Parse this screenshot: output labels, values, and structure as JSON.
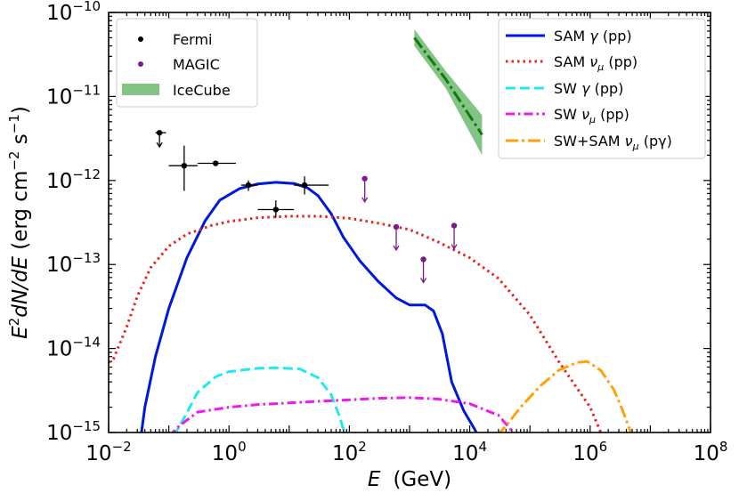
{
  "chart_data": {
    "type": "line",
    "xscale": "log",
    "yscale": "log",
    "xlim": [
      0.01,
      100000000
    ],
    "ylim": [
      1e-15,
      1e-10
    ],
    "xlabel": {
      "var": "E",
      "unit": "(GeV)"
    },
    "ylabel": {
      "lead": "E",
      "sup1": "2",
      "mid": "dN/dE",
      "unit_a": " (erg cm",
      "sup2": "−2",
      "unit_b": " s",
      "sup3": "−1",
      "unit_c": ")"
    },
    "xticks": [
      {
        "value": 0.01,
        "base": "10",
        "exp": "−2"
      },
      {
        "value": 1,
        "base": "10",
        "exp": "0"
      },
      {
        "value": 100,
        "base": "10",
        "exp": "2"
      },
      {
        "value": 10000,
        "base": "10",
        "exp": "4"
      },
      {
        "value": 1000000,
        "base": "10",
        "exp": "6"
      },
      {
        "value": 100000000,
        "base": "10",
        "exp": "8"
      }
    ],
    "yticks": [
      {
        "value": 1e-15,
        "base": "10",
        "exp": "−15"
      },
      {
        "value": 1e-14,
        "base": "10",
        "exp": "−14"
      },
      {
        "value": 1e-13,
        "base": "10",
        "exp": "−13"
      },
      {
        "value": 1e-12,
        "base": "10",
        "exp": "−12"
      },
      {
        "value": 1e-11,
        "base": "10",
        "exp": "−11"
      },
      {
        "value": 1e-10,
        "base": "10",
        "exp": "−10"
      }
    ],
    "series": [
      {
        "name": "SAM γ (pp)",
        "color": "#0018d9",
        "style": "solid",
        "points": [
          [
            0.032,
            6e-16
          ],
          [
            0.04,
            2e-15
          ],
          [
            0.06,
            8e-15
          ],
          [
            0.1,
            3e-14
          ],
          [
            0.2,
            1.2e-13
          ],
          [
            0.4,
            3.3e-13
          ],
          [
            0.7,
            5.8e-13
          ],
          [
            1.5,
            8e-13
          ],
          [
            3,
            9.1e-13
          ],
          [
            6,
            9.5e-13
          ],
          [
            12,
            9.2e-13
          ],
          [
            20,
            8.2e-13
          ],
          [
            30,
            6.6e-13
          ],
          [
            50,
            4e-13
          ],
          [
            80,
            2.1e-13
          ],
          [
            150,
            1.1e-13
          ],
          [
            300,
            6.3e-14
          ],
          [
            600,
            4e-14
          ],
          [
            1000,
            3.3e-14
          ],
          [
            1800,
            3.3e-14
          ],
          [
            2500,
            2.8e-14
          ],
          [
            3500,
            1.5e-14
          ],
          [
            5000,
            4e-15
          ],
          [
            8000,
            1.8e-15
          ],
          [
            12000,
            1.1e-15
          ],
          [
            18000,
            6e-16
          ]
        ]
      },
      {
        "name": "SAM ν_μ (pp)",
        "color": "#e8231f",
        "style": "dotted",
        "points": [
          [
            0.01,
            6.8e-15
          ],
          [
            0.012,
            7.5e-15
          ],
          [
            0.02,
            1.8e-14
          ],
          [
            0.03,
            4.2e-14
          ],
          [
            0.05,
            9.2e-14
          ],
          [
            0.1,
            1.65e-13
          ],
          [
            0.2,
            2.3e-13
          ],
          [
            0.5,
            2.9e-13
          ],
          [
            1,
            3.25e-13
          ],
          [
            3,
            3.6e-13
          ],
          [
            10,
            3.75e-13
          ],
          [
            30,
            3.75e-13
          ],
          [
            100,
            3.55e-13
          ],
          [
            300,
            3.1e-13
          ],
          [
            1000,
            2.6e-13
          ],
          [
            3000,
            1.85e-13
          ],
          [
            10000,
            1.2e-13
          ],
          [
            30000,
            6.8e-14
          ],
          [
            100000,
            2.5e-14
          ],
          [
            300000,
            7e-15
          ],
          [
            1000000,
            2e-15
          ],
          [
            1600000,
            9e-16
          ]
        ]
      },
      {
        "name": "SW γ (pp)",
        "color": "#22e8ef",
        "style": "dashed",
        "points": [
          [
            0.12,
            9e-16
          ],
          [
            0.18,
            1.5e-15
          ],
          [
            0.3,
            3e-15
          ],
          [
            0.6,
            4.6e-15
          ],
          [
            1,
            5.3e-15
          ],
          [
            3,
            5.8e-15
          ],
          [
            6,
            5.9e-15
          ],
          [
            15,
            5.7e-15
          ],
          [
            30,
            4.5e-15
          ],
          [
            50,
            2.8e-15
          ],
          [
            70,
            1.5e-15
          ],
          [
            90,
            8e-16
          ]
        ]
      },
      {
        "name": "SW ν_μ (pp)",
        "color": "#ee1aec",
        "style": "dashdot",
        "points": [
          [
            0.1,
            9e-16
          ],
          [
            0.15,
            1.2e-15
          ],
          [
            0.3,
            1.75e-15
          ],
          [
            1,
            2e-15
          ],
          [
            3,
            2.15e-15
          ],
          [
            10,
            2.25e-15
          ],
          [
            30,
            2.35e-15
          ],
          [
            100,
            2.45e-15
          ],
          [
            300,
            2.55e-15
          ],
          [
            1000,
            2.6e-15
          ],
          [
            3000,
            2.5e-15
          ],
          [
            10000,
            2.2e-15
          ],
          [
            30000,
            1.6e-15
          ],
          [
            60000,
            9e-16
          ]
        ]
      },
      {
        "name": "SW+SAM ν_μ (pγ)",
        "color": "#ffa10a",
        "style": "longdashdot",
        "points": [
          [
            28000,
            9e-16
          ],
          [
            40000,
            1.2e-15
          ],
          [
            70000,
            2e-15
          ],
          [
            150000,
            3.6e-15
          ],
          [
            300000,
            5.5e-15
          ],
          [
            600000,
            6.8e-15
          ],
          [
            900000,
            7e-15
          ],
          [
            1500000,
            5.5e-15
          ],
          [
            2500000,
            3.2e-15
          ],
          [
            3500000,
            1.8e-15
          ],
          [
            5000000,
            9e-16
          ]
        ]
      }
    ],
    "icecube": {
      "name": "IceCube",
      "color": "#5ab05c",
      "line_color": "#107a10",
      "band": [
        [
          1200,
          6.3e-11,
          4e-11
        ],
        [
          4000,
          2e-11,
          1.25e-11
        ],
        [
          16000,
          6e-12,
          2e-12
        ]
      ],
      "line": [
        [
          1200,
          5e-11
        ],
        [
          4000,
          1.6e-11
        ],
        [
          16000,
          3.5e-12
        ]
      ]
    },
    "fermi": {
      "name": "Fermi",
      "color": "#000000",
      "points": [
        {
          "x": 0.07,
          "y": 3.7e-12,
          "xlo": 0.06,
          "xhi": 0.09,
          "upper_limit": true
        },
        {
          "x": 0.18,
          "y": 1.5e-12,
          "xlo": 0.1,
          "xhi": 0.3,
          "ylo": 7.5e-13,
          "yhi": 2.6e-12
        },
        {
          "x": 0.6,
          "y": 1.6e-12,
          "xlo": 0.3,
          "xhi": 1.3
        },
        {
          "x": 2.1,
          "y": 8.8e-13,
          "xlo": 1.6,
          "xhi": 3.0,
          "ylo": 7.5e-13,
          "yhi": 1e-12
        },
        {
          "x": 6.0,
          "y": 4.5e-13,
          "xlo": 3.0,
          "xhi": 12.0,
          "ylo": 3.6e-13,
          "yhi": 5.8e-13
        },
        {
          "x": 18.0,
          "y": 8.8e-13,
          "xlo": 12.0,
          "xhi": 45.0,
          "ylo": 6.8e-13,
          "yhi": 1.12e-12
        }
      ]
    },
    "magic": {
      "name": "MAGIC",
      "color": "#7b1a8a",
      "upper_limits": [
        {
          "x": 180,
          "y": 1.05e-12
        },
        {
          "x": 600,
          "y": 2.8e-13
        },
        {
          "x": 1700,
          "y": 1.15e-13
        },
        {
          "x": 5500,
          "y": 2.9e-13
        }
      ]
    },
    "legend_left": [
      {
        "label": "Fermi",
        "kind": "marker",
        "color": "#000000"
      },
      {
        "label": "MAGIC",
        "kind": "marker",
        "color": "#7b1a8a"
      },
      {
        "label": "IceCube",
        "kind": "patch",
        "color": "#5ab05c"
      }
    ],
    "legend_right": [
      {
        "label_main": "SAM γ (pp)",
        "prefix": "SAM ",
        "greek": "γ",
        "sub": "",
        "suffix": " (pp)",
        "color": "#0018d9",
        "style": "solid"
      },
      {
        "label_main": "SAM ν_μ (pp)",
        "prefix": "SAM ",
        "greek": "ν",
        "sub": "μ",
        "suffix": " (pp)",
        "color": "#e8231f",
        "style": "dotted"
      },
      {
        "label_main": "SW γ (pp)",
        "prefix": "SW ",
        "greek": "γ",
        "sub": "",
        "suffix": " (pp)",
        "color": "#22e8ef",
        "style": "dashed"
      },
      {
        "label_main": "SW ν_μ (pp)",
        "prefix": "SW ",
        "greek": "ν",
        "sub": "μ",
        "suffix": " (pp)",
        "color": "#ee1aec",
        "style": "dashdot"
      },
      {
        "label_main": "SW+SAM ν_μ (pγ)",
        "prefix": "SW+SAM ",
        "greek": "ν",
        "sub": "μ",
        "suffix": " (pγ)",
        "color": "#ffa10a",
        "style": "longdashdot"
      }
    ]
  }
}
